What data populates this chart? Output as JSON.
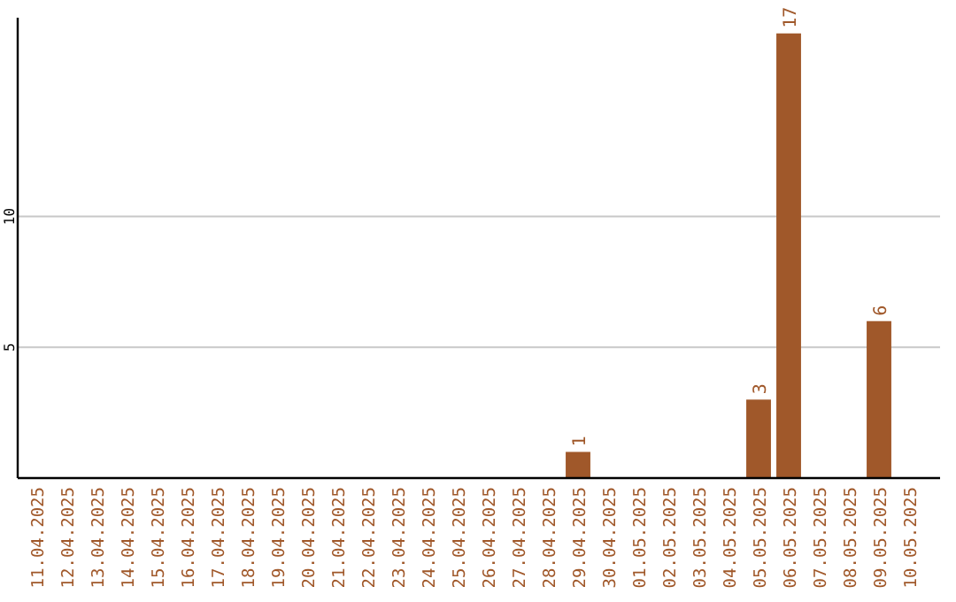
{
  "chart_data": {
    "type": "bar",
    "categories": [
      "11.04.2025",
      "12.04.2025",
      "13.04.2025",
      "14.04.2025",
      "15.04.2025",
      "16.04.2025",
      "17.04.2025",
      "18.04.2025",
      "19.04.2025",
      "20.04.2025",
      "21.04.2025",
      "22.04.2025",
      "23.04.2025",
      "24.04.2025",
      "25.04.2025",
      "26.04.2025",
      "27.04.2025",
      "28.04.2025",
      "29.04.2025",
      "30.04.2025",
      "01.05.2025",
      "02.05.2025",
      "03.05.2025",
      "04.05.2025",
      "05.05.2025",
      "06.05.2025",
      "07.05.2025",
      "08.05.2025",
      "09.05.2025",
      "10.05.2025"
    ],
    "values": [
      0,
      0,
      0,
      0,
      0,
      0,
      0,
      0,
      0,
      0,
      0,
      0,
      0,
      0,
      0,
      0,
      0,
      0,
      1,
      0,
      0,
      0,
      0,
      0,
      3,
      17,
      0,
      0,
      6,
      0
    ],
    "value_labels": [
      null,
      null,
      null,
      null,
      null,
      null,
      null,
      null,
      null,
      null,
      null,
      null,
      null,
      null,
      null,
      null,
      null,
      null,
      "1",
      null,
      null,
      null,
      null,
      null,
      "3",
      "17",
      null,
      null,
      "6",
      null
    ],
    "color": "#a0582a",
    "ylim": [
      0,
      17.6
    ],
    "yticks": [
      5,
      10
    ],
    "grid": "y"
  }
}
